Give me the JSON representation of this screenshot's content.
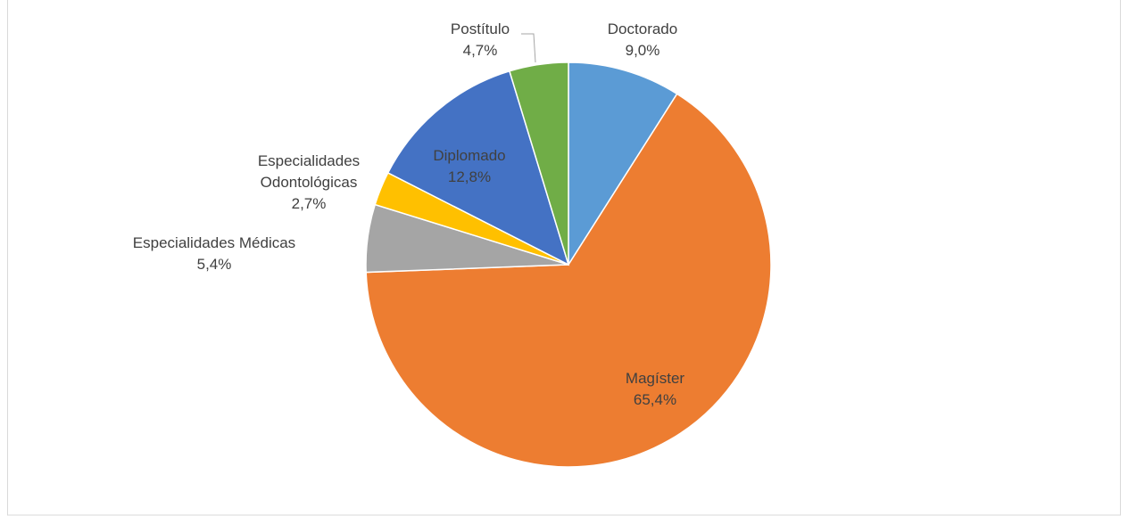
{
  "chart_data": {
    "type": "pie",
    "categories": [
      "Doctorado",
      "Magíster",
      "Especialidades Médicas",
      "Especialidades Odontológicas",
      "Diplomado",
      "Postítulo"
    ],
    "values": [
      9.0,
      65.4,
      5.4,
      2.7,
      12.8,
      4.7
    ],
    "value_labels": [
      "9,0%",
      "65,4%",
      "5,4%",
      "2,7%",
      "12,8%",
      "4,7%"
    ],
    "colors": [
      "#5b9bd5",
      "#ed7d31",
      "#a5a5a5",
      "#ffc000",
      "#4472c4",
      "#70ad47"
    ]
  }
}
